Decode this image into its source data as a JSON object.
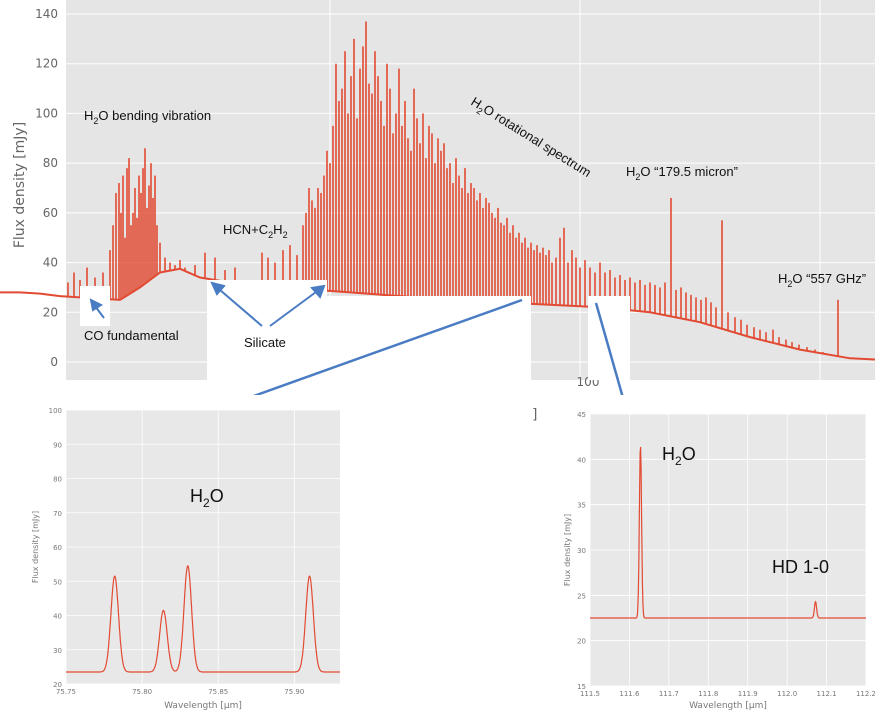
{
  "chart_data": [
    {
      "type": "line",
      "ylabel": "Flux density [mJy]",
      "xlabel": "]",
      "ylim": [
        -5,
        142
      ],
      "yticks": [
        0,
        20,
        40,
        60,
        80,
        100,
        120,
        140
      ],
      "xtick_visible": "100",
      "grid": true,
      "color": "#e24a33",
      "continuum": {
        "x": [
          0,
          20,
          40,
          60,
          80,
          100,
          120,
          140,
          160,
          180,
          200,
          230,
          260,
          300,
          350,
          400,
          450,
          500,
          550,
          600,
          650,
          700,
          750,
          800,
          850,
          875
        ],
        "y": [
          28,
          28,
          27.5,
          26.5,
          26,
          25.5,
          25,
          30,
          36,
          37.5,
          34,
          32,
          31,
          29.5,
          28,
          26.5,
          25,
          24,
          23,
          22,
          20,
          16,
          10,
          5,
          1.5,
          1
        ]
      },
      "lines": {
        "x": [
          68,
          74,
          80,
          87,
          95,
          103,
          110,
          113,
          116,
          119,
          121,
          123,
          125,
          127,
          129,
          131,
          133,
          135,
          137,
          139,
          141,
          143,
          145,
          147,
          149,
          151,
          153,
          155,
          157,
          160,
          165,
          170,
          175,
          180,
          185,
          195,
          205,
          215,
          225,
          235,
          262,
          268,
          275,
          283,
          290,
          297,
          303,
          306,
          309,
          312,
          315,
          318,
          321,
          324,
          327,
          330,
          333,
          336,
          339,
          342,
          345,
          348,
          351,
          354,
          357,
          360,
          363,
          366,
          369,
          372,
          375,
          378,
          381,
          384,
          387,
          390,
          393,
          396,
          399,
          402,
          405,
          408,
          411,
          414,
          417,
          420,
          423,
          426,
          429,
          432,
          435,
          438,
          441,
          444,
          447,
          450,
          453,
          456,
          459,
          462,
          465,
          468,
          471,
          474,
          477,
          480,
          483,
          486,
          489,
          492,
          495,
          498,
          501,
          504,
          507,
          510,
          513,
          516,
          519,
          522,
          525,
          528,
          531,
          534,
          537,
          540,
          543,
          546,
          549,
          552,
          556,
          560,
          564,
          568,
          572,
          576,
          580,
          585,
          590,
          595,
          600,
          605,
          610,
          615,
          620,
          625,
          630,
          635,
          640,
          645,
          650,
          655,
          660,
          665,
          671,
          676,
          681,
          686,
          691,
          696,
          701,
          706,
          711,
          716,
          722,
          728,
          735,
          741,
          747,
          754,
          760,
          766,
          773,
          779,
          786,
          792,
          799,
          807,
          815,
          823,
          831,
          838,
          846,
          854
        ],
        "y": [
          32,
          36,
          33,
          38,
          34,
          36,
          45,
          55,
          68,
          72,
          60,
          75,
          50,
          78,
          82,
          55,
          60,
          70,
          58,
          75,
          68,
          78,
          86,
          62,
          71,
          80,
          66,
          75,
          55,
          48,
          42,
          40,
          39,
          41,
          38,
          39,
          44,
          42,
          37,
          38,
          44,
          42,
          40,
          45,
          47,
          43,
          55,
          60,
          70,
          65,
          62,
          70,
          68,
          75,
          85,
          80,
          95,
          120,
          105,
          110,
          125,
          100,
          115,
          130,
          98,
          118,
          127,
          137,
          112,
          108,
          125,
          115,
          105,
          95,
          120,
          110,
          92,
          100,
          118,
          95,
          105,
          90,
          85,
          110,
          98,
          88,
          100,
          82,
          95,
          92,
          80,
          90,
          85,
          88,
          78,
          80,
          72,
          82,
          75,
          70,
          78,
          68,
          72,
          70,
          65,
          68,
          62,
          66,
          64,
          60,
          58,
          62,
          56,
          55,
          58,
          52,
          55,
          50,
          52,
          48,
          50,
          46,
          48,
          45,
          47,
          44,
          46,
          43,
          45,
          40,
          42,
          50,
          54,
          40,
          45,
          42,
          38,
          41,
          38,
          36,
          40,
          36,
          37,
          34,
          35,
          33,
          34,
          32,
          33,
          31,
          32,
          31,
          30,
          32,
          66,
          29,
          30,
          28,
          27,
          26,
          25,
          26,
          24,
          22,
          57,
          20,
          18,
          17,
          15,
          14,
          13,
          12,
          13,
          10,
          9,
          8,
          7,
          6,
          5,
          4,
          3,
          25,
          2,
          1
        ]
      },
      "annotations": [
        {
          "text": "H",
          "sub": "2",
          "rest": "O bending vibration"
        },
        {
          "text": "HCN+C",
          "sub": "2",
          "rest": "H",
          "sub2": "2"
        },
        {
          "text": "H",
          "sub": "2",
          "rest": "O rotational spectrum"
        },
        {
          "text": "H",
          "sub": "2",
          "rest": "O “179.5 micron”"
        },
        {
          "text": "H",
          "sub": "2",
          "rest": "O “557 GHz”"
        },
        {
          "text": "CO fundamental"
        },
        {
          "text": "Silicate"
        }
      ]
    },
    {
      "type": "line",
      "xlabel": "Wavelength [μm]",
      "ylabel": "Flux density [mJy]",
      "xlim": [
        75.75,
        75.93
      ],
      "ylim": [
        20,
        100
      ],
      "xticks": [
        "75.75",
        "75.80",
        "75.85",
        "75.90"
      ],
      "yticks": [
        "20",
        "30",
        "40",
        "50",
        "60",
        "70",
        "80",
        "90",
        "100"
      ],
      "baseline": 23.5,
      "peaks": [
        {
          "x": 75.782,
          "y": 51.5
        },
        {
          "x": 75.814,
          "y": 41.5
        },
        {
          "x": 75.83,
          "y": 54.5
        },
        {
          "x": 75.91,
          "y": 51.5
        }
      ],
      "label": {
        "text": "H",
        "sub": "2",
        "rest": "O"
      },
      "color": "#e24a33"
    },
    {
      "type": "line",
      "xlabel": "Wavelength [μm]",
      "ylabel": "Flux density [mJy]",
      "xlim": [
        111.5,
        112.2
      ],
      "ylim": [
        15,
        45
      ],
      "xticks": [
        "111.5",
        "111.6",
        "111.7",
        "111.8",
        "111.9",
        "112.0",
        "112.1",
        "112.2"
      ],
      "yticks": [
        "15",
        "20",
        "25",
        "30",
        "35",
        "40",
        "45"
      ],
      "baseline": 22.5,
      "peaks": [
        {
          "x": 111.628,
          "y": 41.5
        },
        {
          "x": 112.072,
          "y": 24.3
        }
      ],
      "labels": [
        {
          "text": "H",
          "sub": "2",
          "rest": "O"
        },
        {
          "text": "HD 1-0"
        }
      ],
      "color": "#e24a33"
    }
  ]
}
